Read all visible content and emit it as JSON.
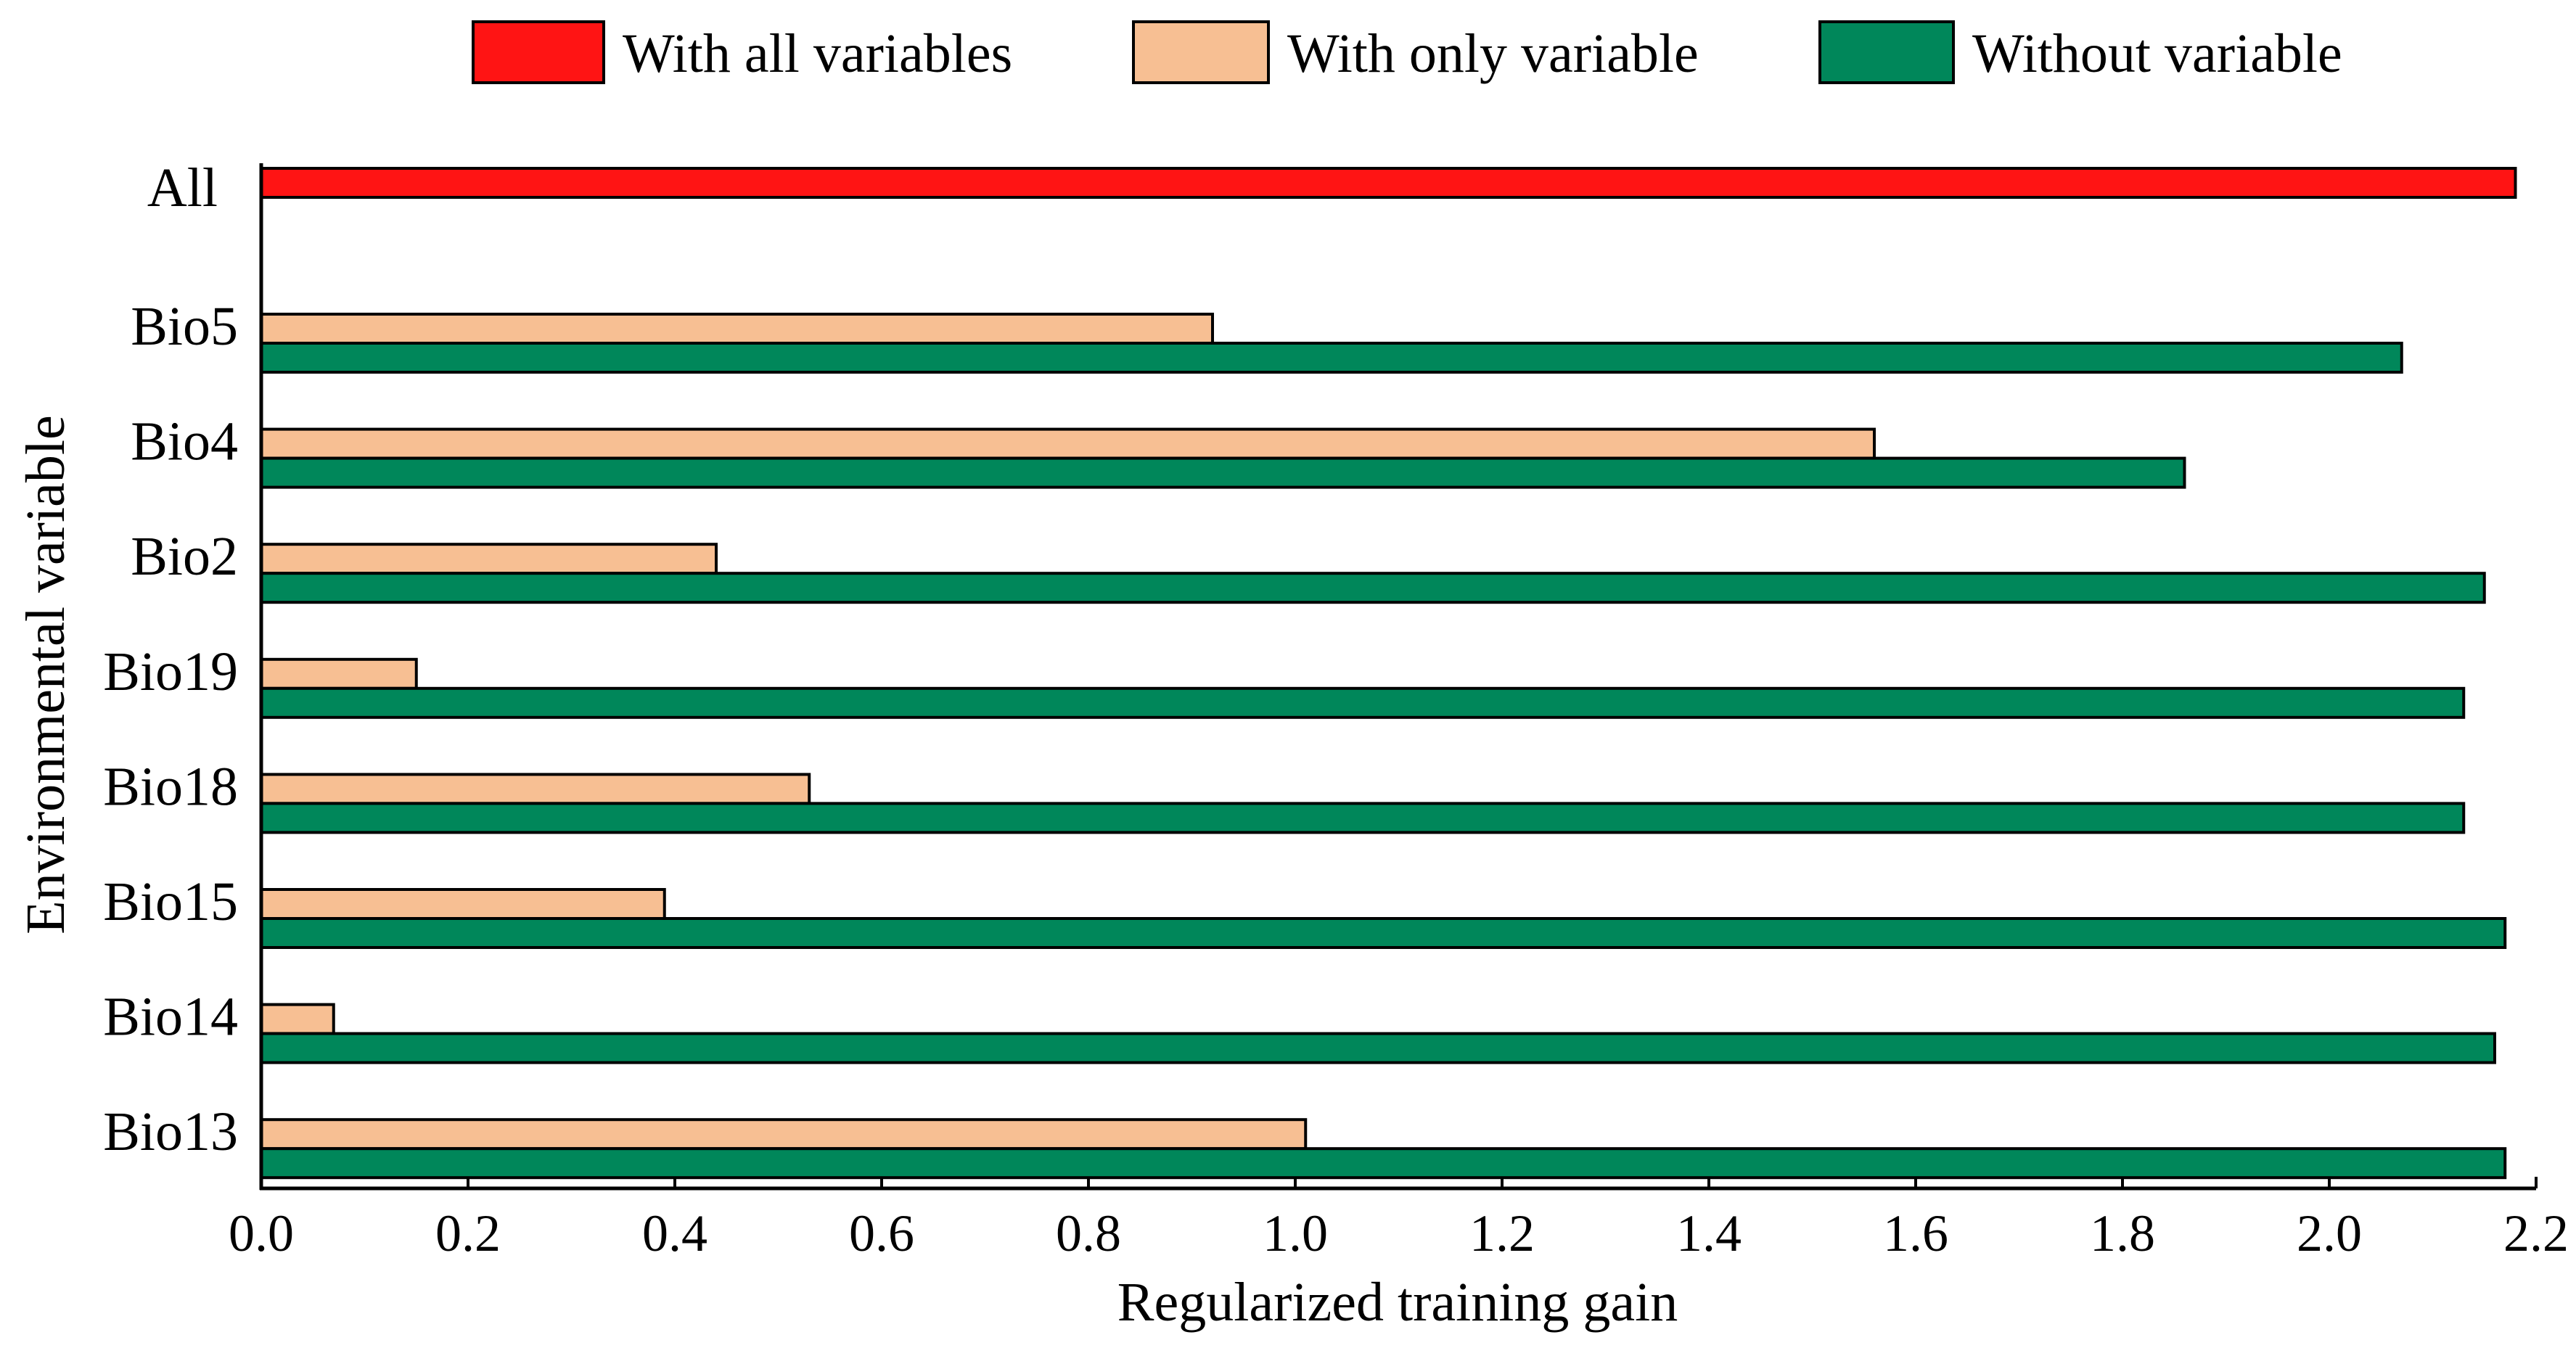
{
  "chart_data": {
    "type": "bar",
    "orientation": "horizontal",
    "title": "",
    "xlabel": "Regularized training gain",
    "ylabel": "Environmental variable",
    "xlim": [
      0.0,
      2.2
    ],
    "x_ticks": [
      "0.0",
      "0.2",
      "0.4",
      "0.6",
      "0.8",
      "1.0",
      "1.2",
      "1.4",
      "1.6",
      "1.8",
      "2.0",
      "2.2"
    ],
    "grid": false,
    "legend_position": "top",
    "legend": [
      {
        "name": "With all variables",
        "color": "#ff1414"
      },
      {
        "name": "With only variable",
        "color": "#f7bf93"
      },
      {
        "name": "Without variable",
        "color": "#00875a"
      }
    ],
    "all": {
      "category": "All",
      "value": 2.18
    },
    "categories": [
      "Bio5",
      "Bio4",
      "Bio2",
      "Bio19",
      "Bio18",
      "Bio15",
      "Bio14",
      "Bio13"
    ],
    "series": [
      {
        "name": "With only variable",
        "color": "#f7bf93",
        "values": [
          0.92,
          1.56,
          0.44,
          0.15,
          0.53,
          0.39,
          0.07,
          1.01
        ]
      },
      {
        "name": "Without variable",
        "color": "#00875a",
        "values": [
          2.07,
          1.86,
          2.15,
          2.13,
          2.13,
          2.17,
          2.16,
          2.17
        ]
      }
    ]
  }
}
